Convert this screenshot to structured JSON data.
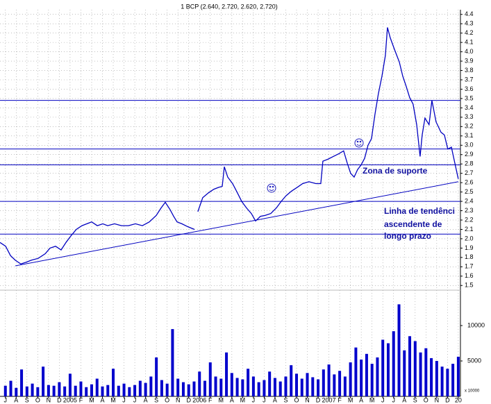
{
  "chart_data": [
    {
      "type": "line",
      "title": "1 BCP (2.640, 2.720, 2.620, 2.720)",
      "xlim": [
        -0.5,
        42.2
      ],
      "ylim": [
        1.45,
        4.45
      ],
      "grid": true,
      "yticks": [
        1.5,
        1.6,
        1.7,
        1.8,
        1.9,
        {
          "value": 2,
          "label": "2.0"
        },
        2.1,
        2.2,
        2.3,
        2.4,
        2.5,
        2.6,
        2.7,
        2.8,
        2.9,
        {
          "value": 3,
          "label": "3.0"
        },
        3.1,
        3.2,
        3.3,
        3.4,
        3.5,
        3.6,
        3.7,
        3.8,
        3.9,
        {
          "value": 4,
          "label": "4.0"
        },
        4.1,
        4.2,
        4.3,
        4.4
      ],
      "series": [
        {
          "name": "BCP",
          "color": "#0000c0",
          "x": [
            -0.5,
            0.02,
            0.47,
            0.92,
            1.43,
            1.95,
            2.4,
            3.04,
            3.69,
            4.14,
            4.65,
            5.17,
            5.62,
            6.07,
            6.58,
            7.1,
            7.55,
            8.0,
            8.52,
            9.03,
            9.48,
            10.12,
            10.77,
            11.41,
            12.06,
            12.7,
            13.35,
            13.99,
            14.44,
            14.83,
            15.28,
            15.6,
            15.92,
            16.37,
            16.89,
            17.53,
            17.7,
            17.85,
            18.3,
            18.82,
            19.33,
            19.78,
            20.11,
            20.3,
            20.62,
            21.07,
            21.52,
            21.91,
            22.36,
            22.81,
            23.2,
            23.65,
            24.1,
            24.61,
            25.13,
            25.58,
            26.03,
            26.54,
            27.06,
            27.57,
            28.15,
            28.8,
            29.25,
            29.44,
            29.89,
            30.41,
            30.92,
            31.37,
            31.7,
            32.02,
            32.34,
            32.66,
            32.99,
            33.31,
            33.63,
            33.95,
            34.27,
            34.59,
            34.92,
            35.24,
            35.43,
            35.69,
            36.07,
            36.53,
            36.85,
            37.17,
            37.49,
            37.81,
            38.14,
            38.46,
            38.65,
            38.91,
            39.29,
            39.55,
            39.94,
            40.39,
            40.71,
            41.03,
            41.36,
            41.68,
            42.0
          ],
          "values": [
            1.96,
            1.92,
            1.82,
            1.77,
            1.73,
            1.75,
            1.77,
            1.79,
            1.84,
            1.9,
            1.92,
            1.88,
            1.96,
            2.03,
            2.1,
            2.14,
            2.16,
            2.18,
            2.14,
            2.16,
            2.14,
            2.16,
            2.14,
            2.14,
            2.16,
            2.14,
            2.18,
            2.25,
            2.33,
            2.39,
            2.31,
            2.24,
            2.18,
            2.16,
            2.13,
            2.1,
            null,
            2.29,
            2.44,
            2.49,
            2.53,
            2.55,
            2.56,
            2.77,
            2.66,
            2.59,
            2.49,
            2.4,
            2.33,
            2.27,
            2.19,
            2.24,
            2.25,
            2.27,
            2.33,
            2.4,
            2.46,
            2.51,
            2.55,
            2.59,
            2.61,
            2.59,
            2.59,
            2.83,
            2.85,
            2.88,
            2.91,
            2.94,
            2.81,
            2.7,
            2.66,
            2.74,
            2.79,
            2.86,
            3.0,
            3.07,
            3.33,
            3.55,
            3.74,
            3.96,
            4.26,
            4.15,
            4.03,
            3.89,
            3.74,
            3.63,
            3.51,
            3.44,
            3.22,
            2.88,
            3.11,
            3.29,
            3.22,
            3.48,
            3.25,
            3.14,
            3.11,
            2.96,
            2.98,
            2.81,
            2.64
          ]
        }
      ],
      "hlines": {
        "color": "#0000c0",
        "values": [
          3.48,
          2.96,
          2.79,
          2.4,
          2.05
        ]
      },
      "trendline": {
        "color": "#0000c0",
        "x": [
          0.92,
          42.0
        ],
        "values": [
          1.71,
          2.61
        ]
      },
      "annotations": [
        "Zona de suporte",
        "Linha de tendênci",
        "ascendente de",
        "longo prazo"
      ]
    },
    {
      "type": "bar",
      "color": "#0000cc",
      "xlim": [
        -0.5,
        42.2
      ],
      "ylim": [
        0,
        15000
      ],
      "yticks": [
        5000,
        10000
      ],
      "unit_label": "x 10000",
      "xticks": [
        {
          "value": 0,
          "label": "J"
        },
        {
          "value": 1,
          "label": "A"
        },
        {
          "value": 2,
          "label": "S"
        },
        {
          "value": 3,
          "label": "O"
        },
        {
          "value": 4,
          "label": "N"
        },
        {
          "value": 5,
          "label": "D"
        },
        {
          "value": 6,
          "label": "2005"
        },
        {
          "value": 7,
          "label": "F"
        },
        {
          "value": 8,
          "label": "M"
        },
        {
          "value": 9,
          "label": "A"
        },
        {
          "value": 10,
          "label": "M"
        },
        {
          "value": 11,
          "label": "J"
        },
        {
          "value": 12,
          "label": "J"
        },
        {
          "value": 13,
          "label": "A"
        },
        {
          "value": 14,
          "label": "S"
        },
        {
          "value": 15,
          "label": "O"
        },
        {
          "value": 16,
          "label": "N"
        },
        {
          "value": 17,
          "label": "D"
        },
        {
          "value": 18,
          "label": "2006"
        },
        {
          "value": 19,
          "label": "F"
        },
        {
          "value": 20,
          "label": "M"
        },
        {
          "value": 21,
          "label": "A"
        },
        {
          "value": 22,
          "label": "M"
        },
        {
          "value": 23,
          "label": "J"
        },
        {
          "value": 24,
          "label": "J"
        },
        {
          "value": 25,
          "label": "A"
        },
        {
          "value": 26,
          "label": "S"
        },
        {
          "value": 27,
          "label": "O"
        },
        {
          "value": 28,
          "label": "N"
        },
        {
          "value": 29,
          "label": "D"
        },
        {
          "value": 30,
          "label": "2007"
        },
        {
          "value": 31,
          "label": "F"
        },
        {
          "value": 32,
          "label": "M"
        },
        {
          "value": 33,
          "label": "A"
        },
        {
          "value": 34,
          "label": "M"
        },
        {
          "value": 35,
          "label": "J"
        },
        {
          "value": 36,
          "label": "J"
        },
        {
          "value": 37,
          "label": "A"
        },
        {
          "value": 38,
          "label": "S"
        },
        {
          "value": 39,
          "label": "O"
        },
        {
          "value": 40,
          "label": "N"
        },
        {
          "value": 41,
          "label": "D"
        },
        {
          "value": 42,
          "label": "20"
        }
      ],
      "x": [
        0,
        0.5,
        1,
        1.5,
        2,
        2.5,
        3,
        3.5,
        4,
        4.5,
        5,
        5.5,
        6,
        6.5,
        7,
        7.5,
        8,
        8.5,
        9,
        9.5,
        10,
        10.5,
        11,
        11.5,
        12,
        12.5,
        13,
        13.5,
        14,
        14.5,
        15,
        15.5,
        16,
        16.5,
        17,
        17.5,
        18,
        18.5,
        19,
        19.5,
        20,
        20.5,
        21,
        21.5,
        22,
        22.5,
        23,
        23.5,
        24,
        24.5,
        25,
        25.5,
        26,
        26.5,
        27,
        27.5,
        28,
        28.5,
        29,
        29.5,
        30,
        30.5,
        31,
        31.5,
        32,
        32.5,
        33,
        33.5,
        34,
        34.5,
        35,
        35.5,
        36,
        36.5,
        37,
        37.5,
        38,
        38.5,
        39,
        39.5,
        40,
        40.5,
        41,
        41.5,
        42
      ],
      "values": [
        1500,
        2200,
        1200,
        3800,
        1400,
        1800,
        1300,
        4200,
        1600,
        1500,
        2000,
        1400,
        3200,
        1500,
        2100,
        1300,
        1700,
        2500,
        1400,
        1600,
        3900,
        1500,
        1800,
        1300,
        1600,
        2200,
        1900,
        2800,
        5500,
        2300,
        1800,
        9500,
        2500,
        2000,
        1700,
        2100,
        3500,
        2200,
        4800,
        2800,
        2500,
        6200,
        3300,
        2600,
        2400,
        3900,
        2800,
        2000,
        2300,
        3500,
        2600,
        2100,
        2800,
        4400,
        3200,
        2500,
        3300,
        2700,
        2400,
        3800,
        4500,
        3100,
        3600,
        2800,
        4800,
        6900,
        5200,
        6000,
        4600,
        5500,
        8000,
        7500,
        9200,
        13000,
        6500,
        8500,
        7800,
        6200,
        6800,
        5400,
        5000,
        4200,
        3900,
        4600,
        5600
      ]
    }
  ]
}
